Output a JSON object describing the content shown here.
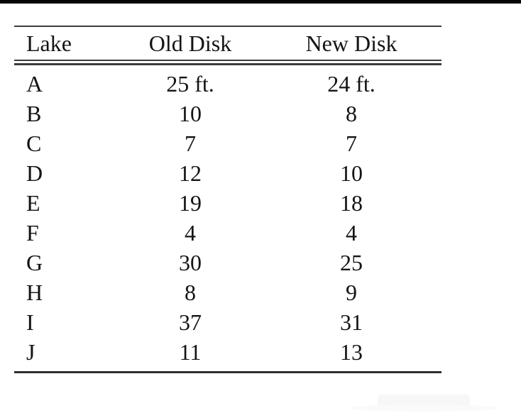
{
  "page": {
    "background": "#ffffff",
    "top_bar_color": "#050505",
    "text_color": "#141414",
    "rule_color": "#3c3c3c"
  },
  "table": {
    "headers": [
      "Lake",
      "Old Disk",
      "New Disk"
    ],
    "rows": [
      [
        "A",
        "25 ft.",
        "24 ft."
      ],
      [
        "B",
        "10",
        "8"
      ],
      [
        "C",
        "7",
        "7"
      ],
      [
        "D",
        "12",
        "10"
      ],
      [
        "E",
        "19",
        "18"
      ],
      [
        "F",
        "4",
        "4"
      ],
      [
        "G",
        "30",
        "25"
      ],
      [
        "H",
        "8",
        "9"
      ],
      [
        "I",
        "37",
        "31"
      ],
      [
        "J",
        "11",
        "13"
      ]
    ]
  },
  "chart_data": {
    "type": "table",
    "columns": [
      "Lake",
      "Old Disk",
      "New Disk"
    ],
    "categories": [
      "A",
      "B",
      "C",
      "D",
      "E",
      "F",
      "G",
      "H",
      "I",
      "J"
    ],
    "series": [
      {
        "name": "Old Disk",
        "values": [
          25,
          10,
          7,
          12,
          19,
          4,
          30,
          8,
          37,
          11
        ]
      },
      {
        "name": "New Disk",
        "values": [
          24,
          8,
          7,
          10,
          18,
          4,
          25,
          9,
          31,
          13
        ]
      }
    ],
    "unit_label": "ft."
  }
}
